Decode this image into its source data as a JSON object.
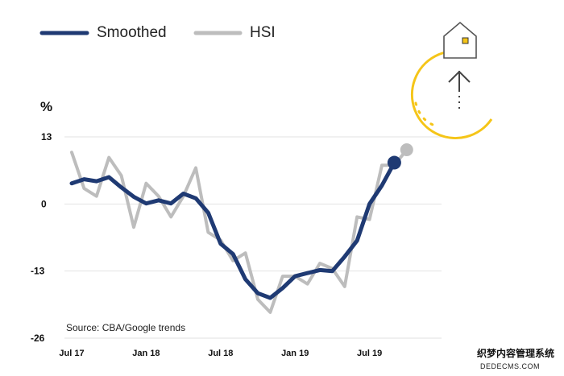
{
  "chart_data": {
    "type": "line",
    "unit": "%",
    "ylim": [
      -26,
      13
    ],
    "yticks": [
      13,
      0,
      -13,
      -26
    ],
    "xlim": [
      0,
      28
    ],
    "xticks": [
      {
        "label": "Jul 17",
        "x": 0
      },
      {
        "label": "Jan 18",
        "x": 6
      },
      {
        "label": "Jul 18",
        "x": 12
      },
      {
        "label": "Jan 19",
        "x": 18
      },
      {
        "label": "Jul 19",
        "x": 24
      }
    ],
    "series": [
      {
        "name": "HSI",
        "color": "#bdbdbd",
        "x": [
          0,
          1,
          2,
          3,
          4,
          5,
          6,
          7,
          8,
          9,
          10,
          11,
          12,
          13,
          14,
          15,
          16,
          17,
          18,
          19,
          20,
          21,
          22,
          23,
          24,
          25,
          26,
          27
        ],
        "values": [
          10,
          3,
          1.5,
          9,
          5.5,
          -4.5,
          4,
          1.5,
          -2.5,
          1.5,
          7,
          -5.5,
          -7,
          -11,
          -9.5,
          -18.5,
          -21,
          -14,
          -14,
          -15.5,
          -11.5,
          -12.5,
          -16,
          -2.5,
          -3,
          7.5,
          7.5,
          10.5
        ]
      },
      {
        "name": "Smoothed",
        "color": "#1f3a73",
        "x": [
          0,
          1,
          2,
          3,
          4,
          5,
          6,
          7,
          8,
          9,
          10,
          11,
          12,
          13,
          14,
          15,
          16,
          17,
          18,
          19,
          20,
          21,
          22,
          23,
          24,
          25,
          26
        ],
        "values": [
          4,
          4.8,
          4.4,
          5.2,
          3.2,
          1.4,
          0.1,
          0.7,
          0.1,
          2,
          1.1,
          -1.7,
          -7.7,
          -9.7,
          -14.6,
          -17.3,
          -18.2,
          -16.3,
          -14,
          -13.4,
          -12.8,
          -13,
          -10.2,
          -7.1,
          0,
          3.6,
          8
        ]
      }
    ],
    "legend": [
      {
        "label": "Smoothed",
        "color": "#1f3a73"
      },
      {
        "label": "HSI",
        "color": "#bdbdbd"
      }
    ],
    "legend_position": "top-left",
    "grid": true,
    "source": "Source: CBA/Google trends"
  },
  "watermark": {
    "line1": "织梦内容管理系统",
    "line2": "DEDECMS.COM"
  },
  "icon": {
    "name": "house-up-arrow-icon",
    "accent": "#f5c518"
  }
}
